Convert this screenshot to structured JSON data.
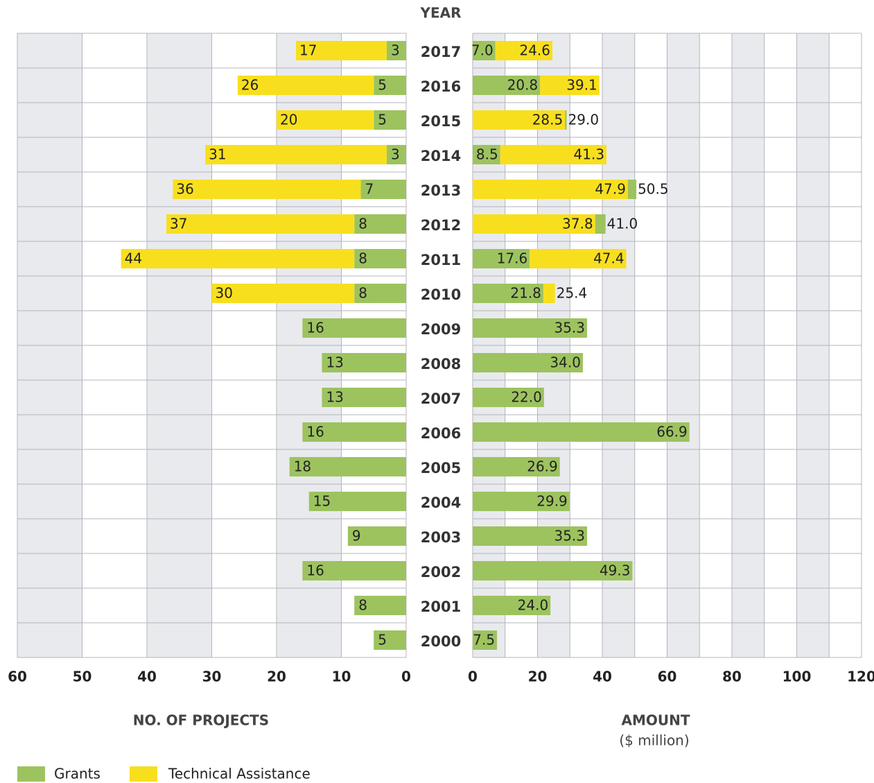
{
  "chart_data": [
    {
      "type": "bar",
      "orientation": "horizontal",
      "stacked": true,
      "y_label": "YEAR",
      "x_label": "NO. OF PROJECTS",
      "categories": [
        "2017",
        "2016",
        "2015",
        "2014",
        "2013",
        "2012",
        "2011",
        "2010",
        "2009",
        "2008",
        "2007",
        "2006",
        "2005",
        "2004",
        "2003",
        "2002",
        "2001",
        "2000"
      ],
      "series": [
        {
          "name": "Grants",
          "color": "#9dc35f",
          "values": [
            3,
            5,
            5,
            3,
            7,
            8,
            8,
            8,
            16,
            13,
            13,
            16,
            18,
            15,
            9,
            16,
            8,
            5
          ]
        },
        {
          "name": "Technical Assistance",
          "color": "#f8df1e",
          "values": [
            14,
            21,
            15,
            28,
            29,
            29,
            36,
            22,
            null,
            null,
            null,
            null,
            null,
            null,
            null,
            null,
            null,
            null
          ]
        }
      ],
      "totals": [
        17,
        26,
        20,
        31,
        36,
        37,
        44,
        30,
        null,
        null,
        null,
        null,
        null,
        null,
        null,
        null,
        null,
        null
      ],
      "xlim": [
        60,
        0
      ],
      "xticks": [
        60,
        50,
        40,
        30,
        20,
        10,
        0
      ],
      "grid": true
    },
    {
      "type": "bar",
      "orientation": "horizontal",
      "stacked": true,
      "x_label": "AMOUNT",
      "x_sublabel": "($ million)",
      "categories": [
        "2017",
        "2016",
        "2015",
        "2014",
        "2013",
        "2012",
        "2011",
        "2010",
        "2009",
        "2008",
        "2007",
        "2006",
        "2005",
        "2004",
        "2003",
        "2002",
        "2001",
        "2000"
      ],
      "series": [
        {
          "color": "#9dc35f",
          "values": [
            7.0,
            20.8,
            0.5,
            8.5,
            2.6,
            3.2,
            17.6,
            21.8,
            35.3,
            34.0,
            22.0,
            66.9,
            26.9,
            29.9,
            35.3,
            49.3,
            24.0,
            7.5
          ],
          "value_labels": [
            "7.0",
            "20.8",
            null,
            "8.5",
            null,
            null,
            "17.6",
            "21.8",
            "35.3",
            "34.0",
            "22.0",
            "66.9",
            "26.9",
            "29.9",
            "35.3",
            "49.3",
            "24.0",
            "7.5"
          ]
        },
        {
          "color": "#f8df1e",
          "values": [
            17.6,
            18.3,
            28.5,
            32.8,
            47.9,
            37.8,
            29.8,
            3.6,
            null,
            null,
            null,
            null,
            null,
            null,
            null,
            null,
            null,
            null
          ],
          "value_labels": [
            null,
            null,
            "28.5",
            null,
            "47.9",
            "37.8",
            null,
            null,
            null,
            null,
            null,
            null,
            null,
            null,
            null,
            null,
            null,
            null
          ]
        }
      ],
      "totals": [
        24.6,
        39.1,
        29.0,
        41.3,
        50.5,
        41.0,
        47.4,
        25.4,
        null,
        null,
        null,
        null,
        null,
        null,
        null,
        null,
        null,
        null
      ],
      "total_labels": [
        "24.6",
        "39.1",
        "29.0",
        "41.3",
        "50.5",
        "41.0",
        "47.4",
        "25.4",
        null,
        null,
        null,
        null,
        null,
        null,
        null,
        null,
        null,
        null
      ],
      "xlim": [
        0,
        120
      ],
      "xticks": [
        0,
        20,
        40,
        60,
        80,
        100,
        120
      ],
      "minor_xticks": [
        10,
        30,
        50,
        70,
        90,
        110
      ],
      "grid": true
    }
  ]
}
